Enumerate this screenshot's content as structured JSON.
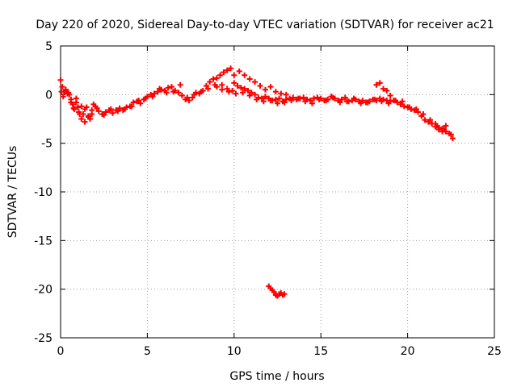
{
  "chart_data": {
    "type": "scatter",
    "title": "Day 220 of 2020, Sidereal Day-to-day VTEC variation (SDTVAR) for receiver ac21",
    "xlabel": "GPS time / hours",
    "ylabel": "SDTVAR / TECUs",
    "xlim": [
      0,
      25
    ],
    "ylim": [
      -25,
      5
    ],
    "xticks": [
      0,
      5,
      10,
      15,
      20,
      25
    ],
    "yticks": [
      5,
      0,
      -5,
      -10,
      -15,
      -20,
      -25
    ],
    "xtick_labels": [
      "0",
      "5",
      "10",
      "15",
      "20",
      "25"
    ],
    "ytick_labels": [
      "5",
      "0",
      "-5",
      "-10",
      "-15",
      "-20",
      "-25"
    ],
    "grid": true,
    "marker": "+",
    "color": "#ff0000",
    "series": [
      {
        "name": "SDTVAR ac21",
        "x": [
          0.0,
          0.1,
          0.2,
          0.3,
          0.4,
          0.5,
          0.6,
          0.7,
          0.8,
          0.9,
          1.0,
          1.1,
          1.2,
          1.3,
          1.4,
          1.5,
          1.6,
          1.7,
          1.8,
          1.9,
          2.0,
          2.2,
          2.4,
          2.6,
          2.8,
          3.0,
          3.2,
          3.4,
          3.6,
          3.8,
          4.0,
          4.2,
          4.4,
          4.6,
          4.8,
          5.0,
          5.2,
          5.4,
          5.6,
          5.8,
          6.0,
          6.2,
          6.4,
          6.6,
          6.8,
          7.0,
          7.2,
          7.4,
          7.6,
          7.8,
          8.0,
          8.2,
          8.4,
          8.6,
          8.8,
          9.0,
          9.2,
          9.4,
          9.6,
          9.8,
          10.0,
          10.2,
          10.4,
          10.6,
          10.8,
          11.0,
          11.2,
          11.4,
          11.6,
          11.8,
          12.0,
          12.2,
          12.4,
          12.6,
          12.8,
          13.0,
          13.2,
          13.4,
          13.6,
          13.8,
          14.0,
          14.2,
          14.4,
          14.6,
          14.8,
          15.0,
          15.2,
          15.4,
          15.6,
          15.8,
          16.0,
          16.2,
          16.4,
          16.6,
          16.8,
          17.0,
          17.2,
          17.4,
          17.6,
          17.8,
          18.0,
          18.2,
          18.4,
          18.6,
          18.8,
          19.0,
          19.2,
          19.4,
          19.6,
          19.8,
          20.0,
          20.2,
          20.4,
          20.6,
          20.8,
          21.0,
          21.2,
          21.4,
          21.6,
          21.8,
          22.0,
          22.2,
          22.4,
          22.6,
          0.05,
          0.15,
          0.3,
          0.45,
          0.6,
          0.75,
          0.9,
          1.05,
          1.2,
          1.4,
          1.6,
          1.8,
          2.1,
          2.5,
          2.9,
          3.3,
          3.7,
          4.1,
          4.5,
          4.9,
          5.3,
          5.7,
          6.1,
          6.5,
          6.9,
          7.3,
          7.7,
          8.1,
          8.5,
          8.9,
          9.3,
          9.7,
          10.1,
          10.5,
          10.9,
          11.3,
          11.7,
          12.1,
          12.5,
          12.9,
          13.3,
          13.7,
          14.1,
          14.5,
          14.9,
          15.3,
          15.7,
          16.1,
          16.5,
          16.9,
          17.3,
          17.7,
          18.1,
          18.5,
          18.9,
          19.3,
          19.7,
          20.1,
          20.5,
          20.9,
          21.3,
          21.7,
          22.1,
          22.5,
          9.0,
          9.3,
          9.6,
          9.9,
          10.0,
          10.3,
          10.6,
          10.9,
          11.2,
          11.5,
          11.8,
          12.1,
          12.4,
          12.7,
          13.0,
          18.2,
          18.4,
          18.6,
          18.8,
          19.0,
          21.6,
          21.8,
          22.0,
          22.2,
          12.0,
          12.1,
          12.2,
          12.3,
          12.4,
          12.5,
          12.6,
          12.7,
          12.8,
          12.9
        ],
        "y": [
          1.5,
          0.8,
          0.3,
          0.4,
          0.1,
          0.0,
          -0.5,
          -1.0,
          -1.5,
          -0.8,
          -1.3,
          -2.0,
          -2.5,
          -2.0,
          -1.5,
          -1.3,
          -2.2,
          -2.5,
          -2.0,
          -1.0,
          -1.2,
          -1.7,
          -2.0,
          -1.8,
          -1.6,
          -1.9,
          -1.6,
          -1.4,
          -1.6,
          -1.3,
          -1.2,
          -0.8,
          -0.7,
          -0.9,
          -0.5,
          -0.2,
          0.0,
          0.1,
          0.3,
          0.5,
          0.4,
          0.7,
          0.8,
          0.4,
          0.2,
          -0.1,
          -0.5,
          -0.6,
          -0.3,
          0.2,
          0.1,
          0.4,
          0.9,
          1.3,
          1.6,
          1.7,
          2.0,
          2.3,
          2.5,
          2.7,
          1.2,
          0.9,
          0.7,
          0.6,
          0.4,
          0.2,
          0.0,
          -0.3,
          -0.4,
          -0.2,
          -0.4,
          -0.6,
          -0.5,
          -0.4,
          -0.7,
          -0.5,
          -0.4,
          -0.3,
          -0.5,
          -0.4,
          -0.3,
          -0.5,
          -0.6,
          -0.4,
          -0.3,
          -0.4,
          -0.6,
          -0.5,
          -0.2,
          -0.4,
          -0.6,
          -0.5,
          -0.3,
          -0.7,
          -0.6,
          -0.5,
          -0.7,
          -0.6,
          -0.8,
          -0.7,
          -0.5,
          -0.6,
          -0.4,
          -0.5,
          -0.6,
          -0.7,
          -0.6,
          -0.8,
          -1.0,
          -1.2,
          -1.3,
          -1.5,
          -1.6,
          -1.8,
          -2.2,
          -2.6,
          -2.8,
          -3.0,
          -3.3,
          -3.6,
          -3.5,
          -3.8,
          -4.0,
          -4.5,
          0.3,
          -0.2,
          0.5,
          0.2,
          -0.8,
          -1.4,
          -0.4,
          -1.8,
          -1.2,
          -2.8,
          -2.3,
          -1.6,
          -1.4,
          -2.1,
          -1.5,
          -1.7,
          -1.5,
          -1.2,
          -0.6,
          -0.4,
          -0.2,
          0.6,
          0.2,
          0.3,
          1.0,
          -0.3,
          0.0,
          0.3,
          0.6,
          1.0,
          0.5,
          0.3,
          0.1,
          0.2,
          -0.1,
          -0.5,
          -0.7,
          -0.6,
          -0.9,
          -0.8,
          -0.6,
          -0.4,
          -0.7,
          -0.9,
          -0.5,
          -0.6,
          -0.3,
          -0.8,
          -0.7,
          -0.4,
          -0.9,
          -0.8,
          -0.5,
          -0.7,
          -0.9,
          -0.6,
          -0.7,
          -1.3,
          -1.5,
          -2.0,
          -2.6,
          -3.2,
          -3.6,
          -4.1,
          0.8,
          1.0,
          0.6,
          0.4,
          2.0,
          2.4,
          2.0,
          1.6,
          1.3,
          0.9,
          0.5,
          0.8,
          0.3,
          0.1,
          0.0,
          1.0,
          1.2,
          0.6,
          0.4,
          -0.1,
          -3.0,
          -3.4,
          -3.8,
          -3.2,
          -19.7,
          -19.9,
          -20.1,
          -20.3,
          -20.6,
          -20.7,
          -20.5,
          -20.4,
          -20.6,
          -20.5
        ]
      }
    ]
  }
}
